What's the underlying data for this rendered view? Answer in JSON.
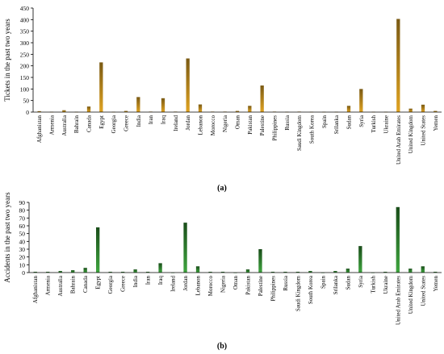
{
  "chart_data": [
    {
      "type": "bar",
      "panel_label": "(a)",
      "ylabel": "Tickets in the past two years",
      "xlabel": "",
      "ylim": [
        0,
        450
      ],
      "yticks": [
        "0",
        "50",
        "100",
        "150",
        "200",
        "250",
        "300",
        "350",
        "400",
        "450"
      ],
      "grid": false,
      "legend": "none",
      "bar_color": "#b8860b",
      "categories": [
        "Afghanistan",
        "Armenia",
        "Australia",
        "Bahrain",
        "Canada",
        "Egypt",
        "Georgia",
        "Greece",
        "India",
        "Iran",
        "Iraq",
        "Ireland",
        "Jordan",
        "Lebanon",
        "Morocco",
        "Nigeria",
        "Oman",
        "Pakistan",
        "Palestine",
        "Philippines",
        "Russia",
        "Saudi Kingdom",
        "South Korea",
        "Spain",
        "Srilanka",
        "Sudan",
        "Syria",
        "Turkish",
        "Ukraine",
        "United Arab Emirates",
        "United Kingdom",
        "United States",
        "Yemen"
      ],
      "values": [
        4,
        1,
        8,
        1,
        24,
        215,
        1,
        5,
        65,
        2,
        60,
        2,
        232,
        33,
        2,
        2,
        5,
        27,
        115,
        2,
        1,
        2,
        1,
        1,
        1,
        27,
        100,
        1,
        1,
        403,
        15,
        32,
        5
      ]
    },
    {
      "type": "bar",
      "panel_label": "(b)",
      "ylabel": "Accidents in the past two years",
      "xlabel": "",
      "ylim": [
        0,
        90
      ],
      "yticks": [
        "0",
        "10",
        "20",
        "30",
        "40",
        "50",
        "60",
        "70",
        "80",
        "90"
      ],
      "grid": false,
      "legend": "none",
      "bar_color": "#2e8b2e",
      "categories": [
        "Afghanistan",
        "Armenia",
        "Australia",
        "Bahrain",
        "Canada",
        "Egypt",
        "Georgia",
        "Greece",
        "India",
        "Iran",
        "Iraq",
        "Ireland",
        "Jordan",
        "Lebanon",
        "Morocco",
        "Nigeria",
        "Oman",
        "Pakistan",
        "Palestine",
        "Philippines",
        "Russia",
        "Saudi Kingdom",
        "South Korea",
        "Spain",
        "Srilanka",
        "Sudan",
        "Syria",
        "Turkish",
        "Ukraine",
        "United Arab Emirates",
        "United Kingdom",
        "United States",
        "Yemen"
      ],
      "values": [
        1,
        1,
        2,
        3,
        6,
        58,
        1,
        1,
        4,
        1,
        12,
        0,
        64,
        8,
        1,
        1,
        0,
        4,
        30,
        1,
        1,
        1,
        2,
        0,
        2,
        5,
        34,
        0,
        1,
        84,
        5,
        8,
        1
      ]
    }
  ]
}
